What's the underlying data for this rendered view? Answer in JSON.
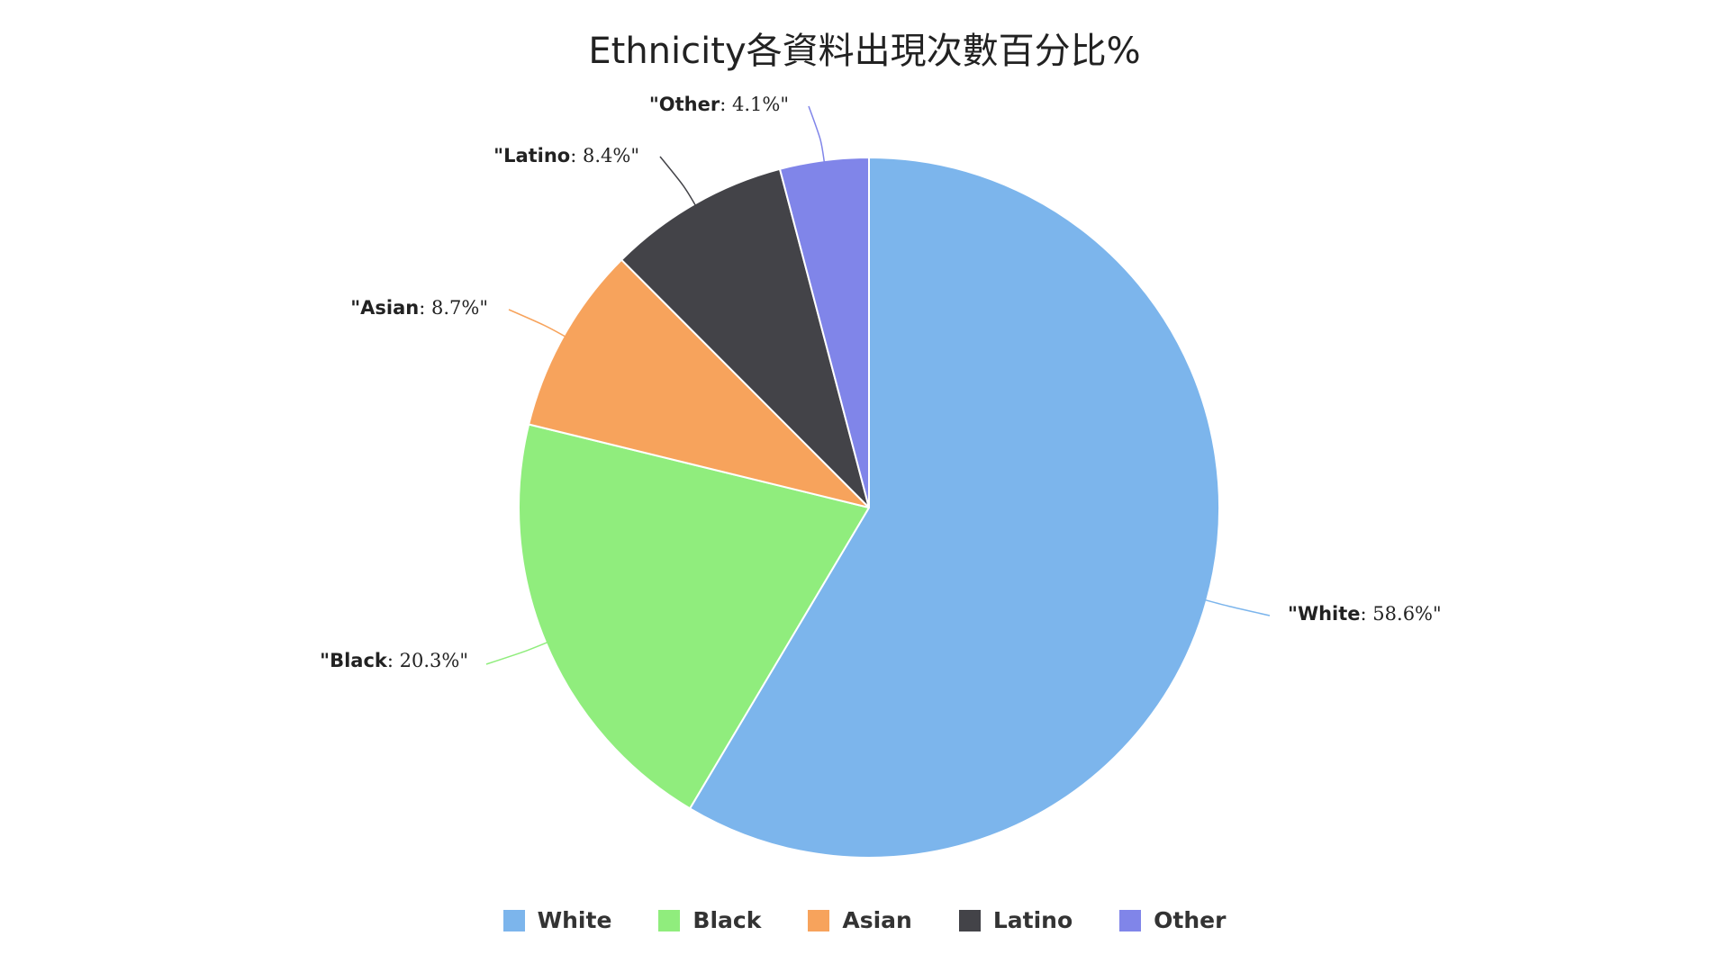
{
  "chart_data": {
    "type": "pie",
    "title": "Ethnicity各資料出現次數百分比%",
    "categories": [
      "White",
      "Black",
      "Asian",
      "Latino",
      "Other"
    ],
    "values": [
      58.6,
      20.3,
      8.7,
      8.4,
      4.1
    ],
    "colors": [
      "#7cb5ec",
      "#90ed7d",
      "#f7a35c",
      "#434348",
      "#8085e9"
    ],
    "data_labels": [
      {
        "name": "\"White",
        "value": ": 58.6%\""
      },
      {
        "name": "\"Black",
        "value": ": 20.3%\""
      },
      {
        "name": "\"Asian",
        "value": ": 8.7%\""
      },
      {
        "name": "\"Latino",
        "value": ": 8.4%\""
      },
      {
        "name": "\"Other",
        "value": ": 4.1%\""
      }
    ],
    "legend": {
      "placement": "bottom-center",
      "items": [
        "White",
        "Black",
        "Asian",
        "Latino",
        "Other"
      ]
    },
    "start_angle": "top",
    "direction": "clockwise"
  }
}
